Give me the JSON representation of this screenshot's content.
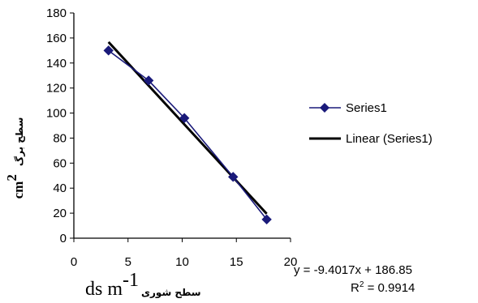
{
  "chart_data": {
    "type": "scatter",
    "x": [
      3.2,
      6.9,
      10.2,
      14.7,
      17.8
    ],
    "y": [
      150,
      126,
      96,
      49,
      15
    ],
    "xlim": [
      0,
      20
    ],
    "ylim": [
      0,
      180
    ],
    "xticks": [
      "0",
      "5",
      "10",
      "15",
      "20"
    ],
    "yticks": [
      "0",
      "20",
      "40",
      "60",
      "80",
      "100",
      "120",
      "140",
      "160",
      "180"
    ],
    "grid": false,
    "legend_position": "right",
    "series": [
      {
        "name": "Series1",
        "color": "#1a1a7a",
        "marker": "diamond"
      },
      {
        "name": "Linear (Series1)",
        "color": "#000000",
        "kind": "trendline"
      }
    ],
    "trendline": {
      "slope": -9.4017,
      "intercept": 186.85,
      "r2": 0.9914
    },
    "equation_text": "y = -9.4017x + 186.85",
    "r2_prefix": "R",
    "r2_sup": "2",
    "r2_value": " = 0.9914",
    "xlabel": {
      "latin": "ds m",
      "sup": "-1",
      "persian": "سطح شوری"
    },
    "ylabel": {
      "latin": "cm",
      "sup": "2",
      "persian": "سطح برگ"
    }
  }
}
